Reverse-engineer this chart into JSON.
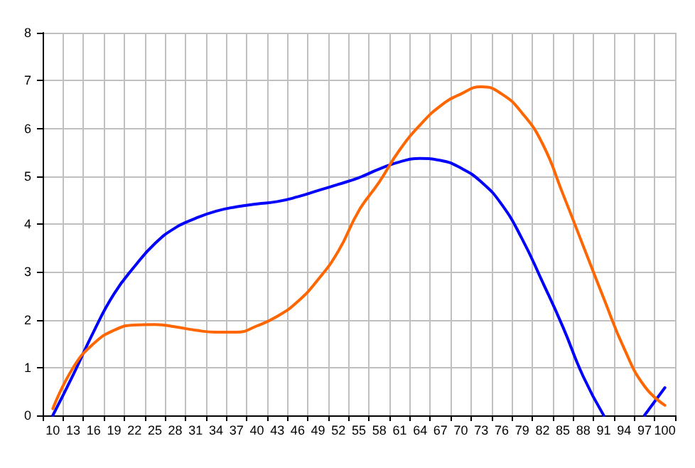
{
  "chart_data": {
    "type": "line",
    "categories": [
      "10",
      "13",
      "16",
      "19",
      "22",
      "25",
      "28",
      "31",
      "34",
      "37",
      "40",
      "43",
      "46",
      "49",
      "52",
      "55",
      "58",
      "61",
      "64",
      "67",
      "70",
      "73",
      "76",
      "79",
      "82",
      "85",
      "88",
      "91",
      "94",
      "97",
      "100"
    ],
    "ylim": [
      0,
      8
    ],
    "yticks": [
      0,
      1,
      2,
      3,
      4,
      5,
      6,
      7,
      8
    ],
    "grid": true,
    "marker": "none",
    "line_style": "solid",
    "series": [
      {
        "color": "#0000ff",
        "values": [
          0,
          0.85,
          1.75,
          2.54,
          3.11,
          3.59,
          3.92,
          4.12,
          4.27,
          4.36,
          4.42,
          4.47,
          4.57,
          4.7,
          4.83,
          4.97,
          5.15,
          5.3,
          5.37,
          5.33,
          5.17,
          4.88,
          4.41,
          3.69,
          2.79,
          1.85,
          0.81,
          0,
          null,
          0,
          0.58
        ]
      },
      {
        "color": "#ff6600",
        "values": [
          0.14,
          1.0,
          1.5,
          1.78,
          1.89,
          1.9,
          1.85,
          1.78,
          1.74,
          1.74,
          1.87,
          2.07,
          2.38,
          2.84,
          3.44,
          4.28,
          4.88,
          5.55,
          6.07,
          6.47,
          6.72,
          6.87,
          6.72,
          6.32,
          5.68,
          4.63,
          3.54,
          2.45,
          1.4,
          0.61,
          0.21
        ]
      }
    ]
  }
}
